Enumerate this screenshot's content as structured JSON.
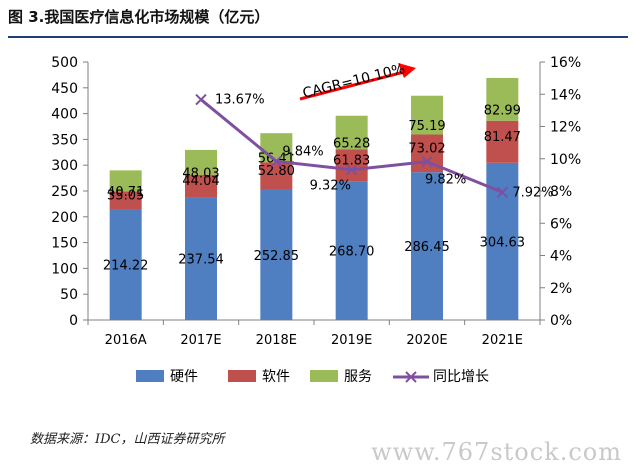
{
  "title": "图 3.我国医疗信息化市场规模（亿元）",
  "source": "数据来源：IDC，山西证券研究所",
  "watermark": "www.767stock.com",
  "annotation": "CAGR=10.10%",
  "colors": {
    "hardware": "#4f7fc1",
    "software": "#c0504d",
    "service": "#9bbb59",
    "growth": "#7f4fa0",
    "arrow": "#ff0000"
  },
  "chart_data": {
    "type": "bar",
    "stacked": true,
    "categories": [
      "2016A",
      "2017E",
      "2018E",
      "2019E",
      "2020E",
      "2021E"
    ],
    "series": [
      {
        "name": "硬件",
        "values": [
          214.22,
          237.54,
          252.85,
          268.7,
          286.45,
          304.63
        ]
      },
      {
        "name": "软件",
        "values": [
          35.05,
          44.04,
          52.8,
          61.83,
          73.02,
          81.47
        ]
      },
      {
        "name": "服务",
        "values": [
          40.71,
          48.03,
          56.41,
          65.28,
          75.19,
          82.99
        ]
      }
    ],
    "line_series": {
      "name": "同比增长",
      "axis": "right",
      "values": [
        null,
        13.67,
        9.84,
        9.32,
        9.82,
        7.92
      ],
      "labels": [
        "",
        "13.67%",
        "9.84%",
        "9.32%",
        "9.82%",
        "7.92%"
      ]
    },
    "ylim_left": [
      0,
      500
    ],
    "yticks_left": [
      "0",
      "50",
      "100",
      "150",
      "200",
      "250",
      "300",
      "350",
      "400",
      "450",
      "500"
    ],
    "ylim_right": [
      0,
      16
    ],
    "yticks_right": [
      "0%",
      "2%",
      "4%",
      "6%",
      "8%",
      "10%",
      "12%",
      "14%",
      "16%"
    ],
    "legend_position": "bottom"
  }
}
